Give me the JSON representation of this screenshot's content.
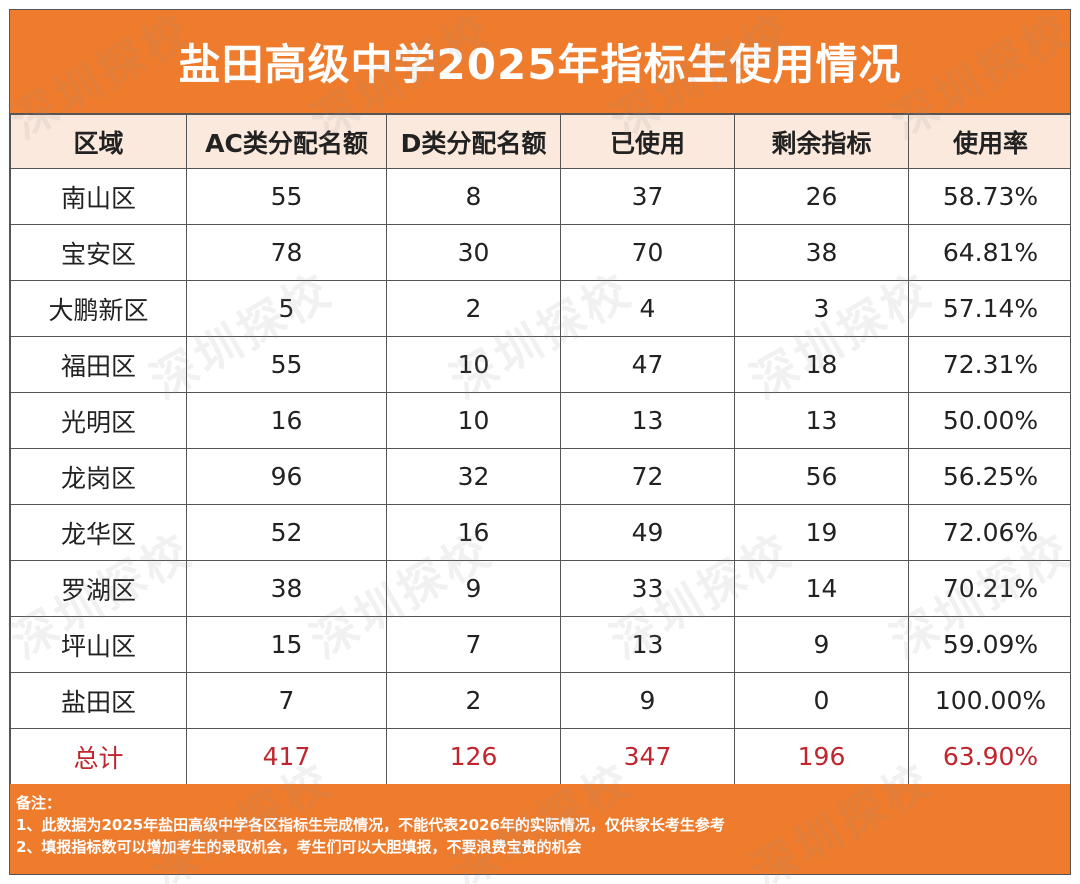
{
  "title": "盐田高级中学2025年指标生使用情况",
  "headers": [
    "区域",
    "AC类分配名额",
    "D类分配名额",
    "已使用",
    "剩余指标",
    "使用率"
  ],
  "rows": [
    [
      "南山区",
      "55",
      "8",
      "37",
      "26",
      "58.73%"
    ],
    [
      "宝安区",
      "78",
      "30",
      "70",
      "38",
      "64.81%"
    ],
    [
      "大鹏新区",
      "5",
      "2",
      "4",
      "3",
      "57.14%"
    ],
    [
      "福田区",
      "55",
      "10",
      "47",
      "18",
      "72.31%"
    ],
    [
      "光明区",
      "16",
      "10",
      "13",
      "13",
      "50.00%"
    ],
    [
      "龙岗区",
      "96",
      "32",
      "72",
      "56",
      "56.25%"
    ],
    [
      "龙华区",
      "52",
      "16",
      "49",
      "19",
      "72.06%"
    ],
    [
      "罗湖区",
      "38",
      "9",
      "33",
      "14",
      "70.21%"
    ],
    [
      "坪山区",
      "15",
      "7",
      "13",
      "9",
      "59.09%"
    ],
    [
      "盐田区",
      "7",
      "2",
      "9",
      "0",
      "100.00%"
    ]
  ],
  "total": [
    "总计",
    "417",
    "126",
    "347",
    "196",
    "63.90%"
  ],
  "notes": {
    "heading": "备注：",
    "line1": "1、此数据为2025年盐田高级中学各区指标生完成情况，不能代表2026年的实际情况，仅供家长考生参考",
    "line2": "2、填报指标数可以增加考生的录取机会，考生们可以大胆填报，不要浪费宝贵的机会"
  },
  "watermark": "深圳探校",
  "colors": {
    "header_bar": "#ef7b2c",
    "header_row": "#fbe9dd",
    "rate_text": "#c0262d"
  }
}
